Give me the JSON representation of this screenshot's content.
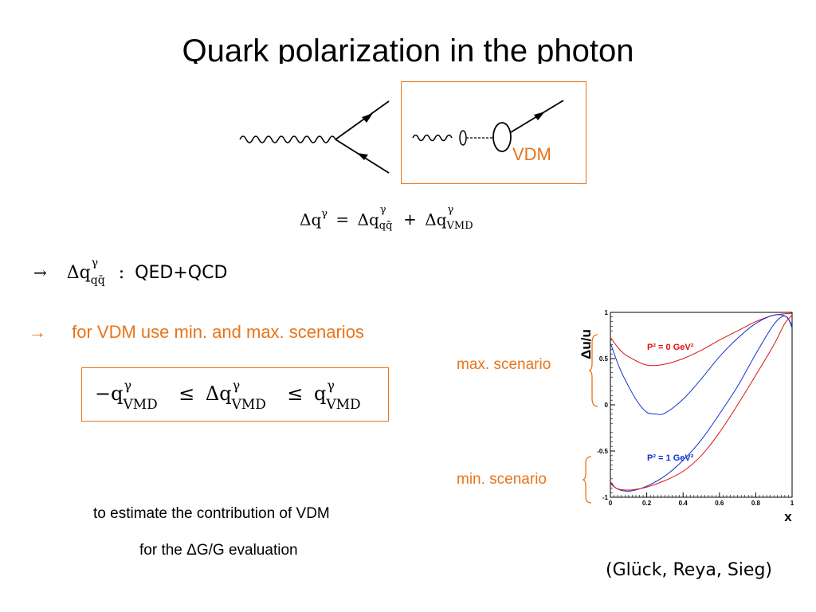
{
  "title": "Quark polarization in the photon",
  "vdm_label": "VDM",
  "equation_main": {
    "lhs": "Δq",
    "lhs_sup": "γ",
    "eq": "=",
    "t1": "Δq",
    "t1_sup": "γ",
    "t1_sub": "qq̄",
    "plus": "+",
    "t2": "Δq",
    "t2_sup": "γ",
    "t2_sub": "VMD"
  },
  "line1": {
    "arrow": "→",
    "term": "Δq",
    "term_sup": "γ",
    "term_sub": "qq̄",
    "colon": ":",
    "text": "QED+QCD"
  },
  "line2": {
    "arrow": "→",
    "text": "for VDM  use min. and max. scenarios"
  },
  "inequality": {
    "a": "−q",
    "a_sup": "γ",
    "a_sub": "VMD",
    "le1": "≤",
    "b": "Δq",
    "b_sup": "γ",
    "b_sub": "VMD",
    "le2": "≤",
    "c": "q",
    "c_sup": "γ",
    "c_sub": "VMD"
  },
  "estimate_line1": "to estimate the contribution of VDM",
  "estimate_line2": "for  the ΔG/G  evaluation",
  "max_scenario": "max. scenario",
  "min_scenario": "min. scenario",
  "reference": "(Glück, Reya, Sieg)",
  "chart_data": {
    "type": "line",
    "ylabel": "Δu/u",
    "xlabel": "x",
    "xlim": [
      0,
      1
    ],
    "ylim": [
      -1,
      1
    ],
    "x_ticks": [
      "0",
      "0.2",
      "0.4",
      "0.6",
      "0.8",
      "1"
    ],
    "y_ticks": [
      "-1",
      "-0.5",
      "0",
      "0.5",
      "1"
    ],
    "annotations": [
      {
        "text": "P² = 0 GeV²",
        "color": "#dd1111"
      },
      {
        "text": "P² = 1 GeV²",
        "color": "#1133cc"
      }
    ],
    "series": [
      {
        "color": "#dd1111",
        "x": [
          0,
          0.05,
          0.1,
          0.2,
          0.3,
          0.4,
          0.5,
          0.6,
          0.7,
          0.8,
          0.9,
          1.0
        ],
        "y": [
          0.73,
          0.6,
          0.52,
          0.43,
          0.44,
          0.5,
          0.59,
          0.7,
          0.8,
          0.9,
          0.97,
          0.99
        ]
      },
      {
        "color": "#1133cc",
        "x": [
          0,
          0.05,
          0.1,
          0.15,
          0.2,
          0.25,
          0.3,
          0.4,
          0.5,
          0.6,
          0.7,
          0.8,
          0.9,
          0.97,
          1.0
        ],
        "y": [
          0.67,
          0.4,
          0.2,
          0.03,
          -0.08,
          -0.1,
          -0.09,
          0.06,
          0.28,
          0.52,
          0.72,
          0.88,
          0.97,
          0.95,
          0.83
        ]
      },
      {
        "color": "#1133cc",
        "x": [
          0,
          0.03,
          0.07,
          0.12,
          0.2,
          0.3,
          0.4,
          0.5,
          0.6,
          0.7,
          0.8,
          0.9,
          0.96,
          1.0
        ],
        "y": [
          -0.85,
          -0.9,
          -0.93,
          -0.93,
          -0.88,
          -0.77,
          -0.6,
          -0.38,
          -0.1,
          0.2,
          0.55,
          0.87,
          0.96,
          0.86
        ]
      },
      {
        "color": "#dd1111",
        "x": [
          0,
          0.03,
          0.07,
          0.12,
          0.2,
          0.3,
          0.4,
          0.5,
          0.6,
          0.7,
          0.8,
          0.9,
          0.96,
          1.0
        ],
        "y": [
          -0.83,
          -0.9,
          -0.92,
          -0.92,
          -0.89,
          -0.82,
          -0.72,
          -0.55,
          -0.3,
          0.0,
          0.32,
          0.65,
          0.88,
          0.97
        ]
      }
    ]
  }
}
